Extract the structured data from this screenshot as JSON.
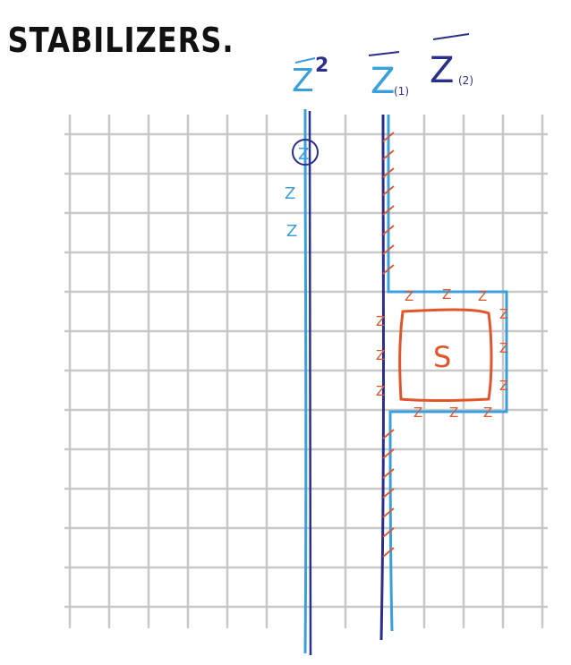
{
  "title": "STABILIZERS.",
  "operator_labels": {
    "z_squared": {
      "base": "Z",
      "exponent": "2"
    },
    "z_1": {
      "base": "Z",
      "subscript": "(1)"
    },
    "z_2": {
      "base": "Z",
      "subscript": "(2)"
    }
  },
  "marks": {
    "z_mark": "Z",
    "stabilizer_label": "S"
  },
  "colors": {
    "grid": "#c8c8c8",
    "light_blue": "#3aa0dc",
    "dark_blue": "#2a2f8a",
    "orange": "#e2552a",
    "ink": "#111111"
  }
}
